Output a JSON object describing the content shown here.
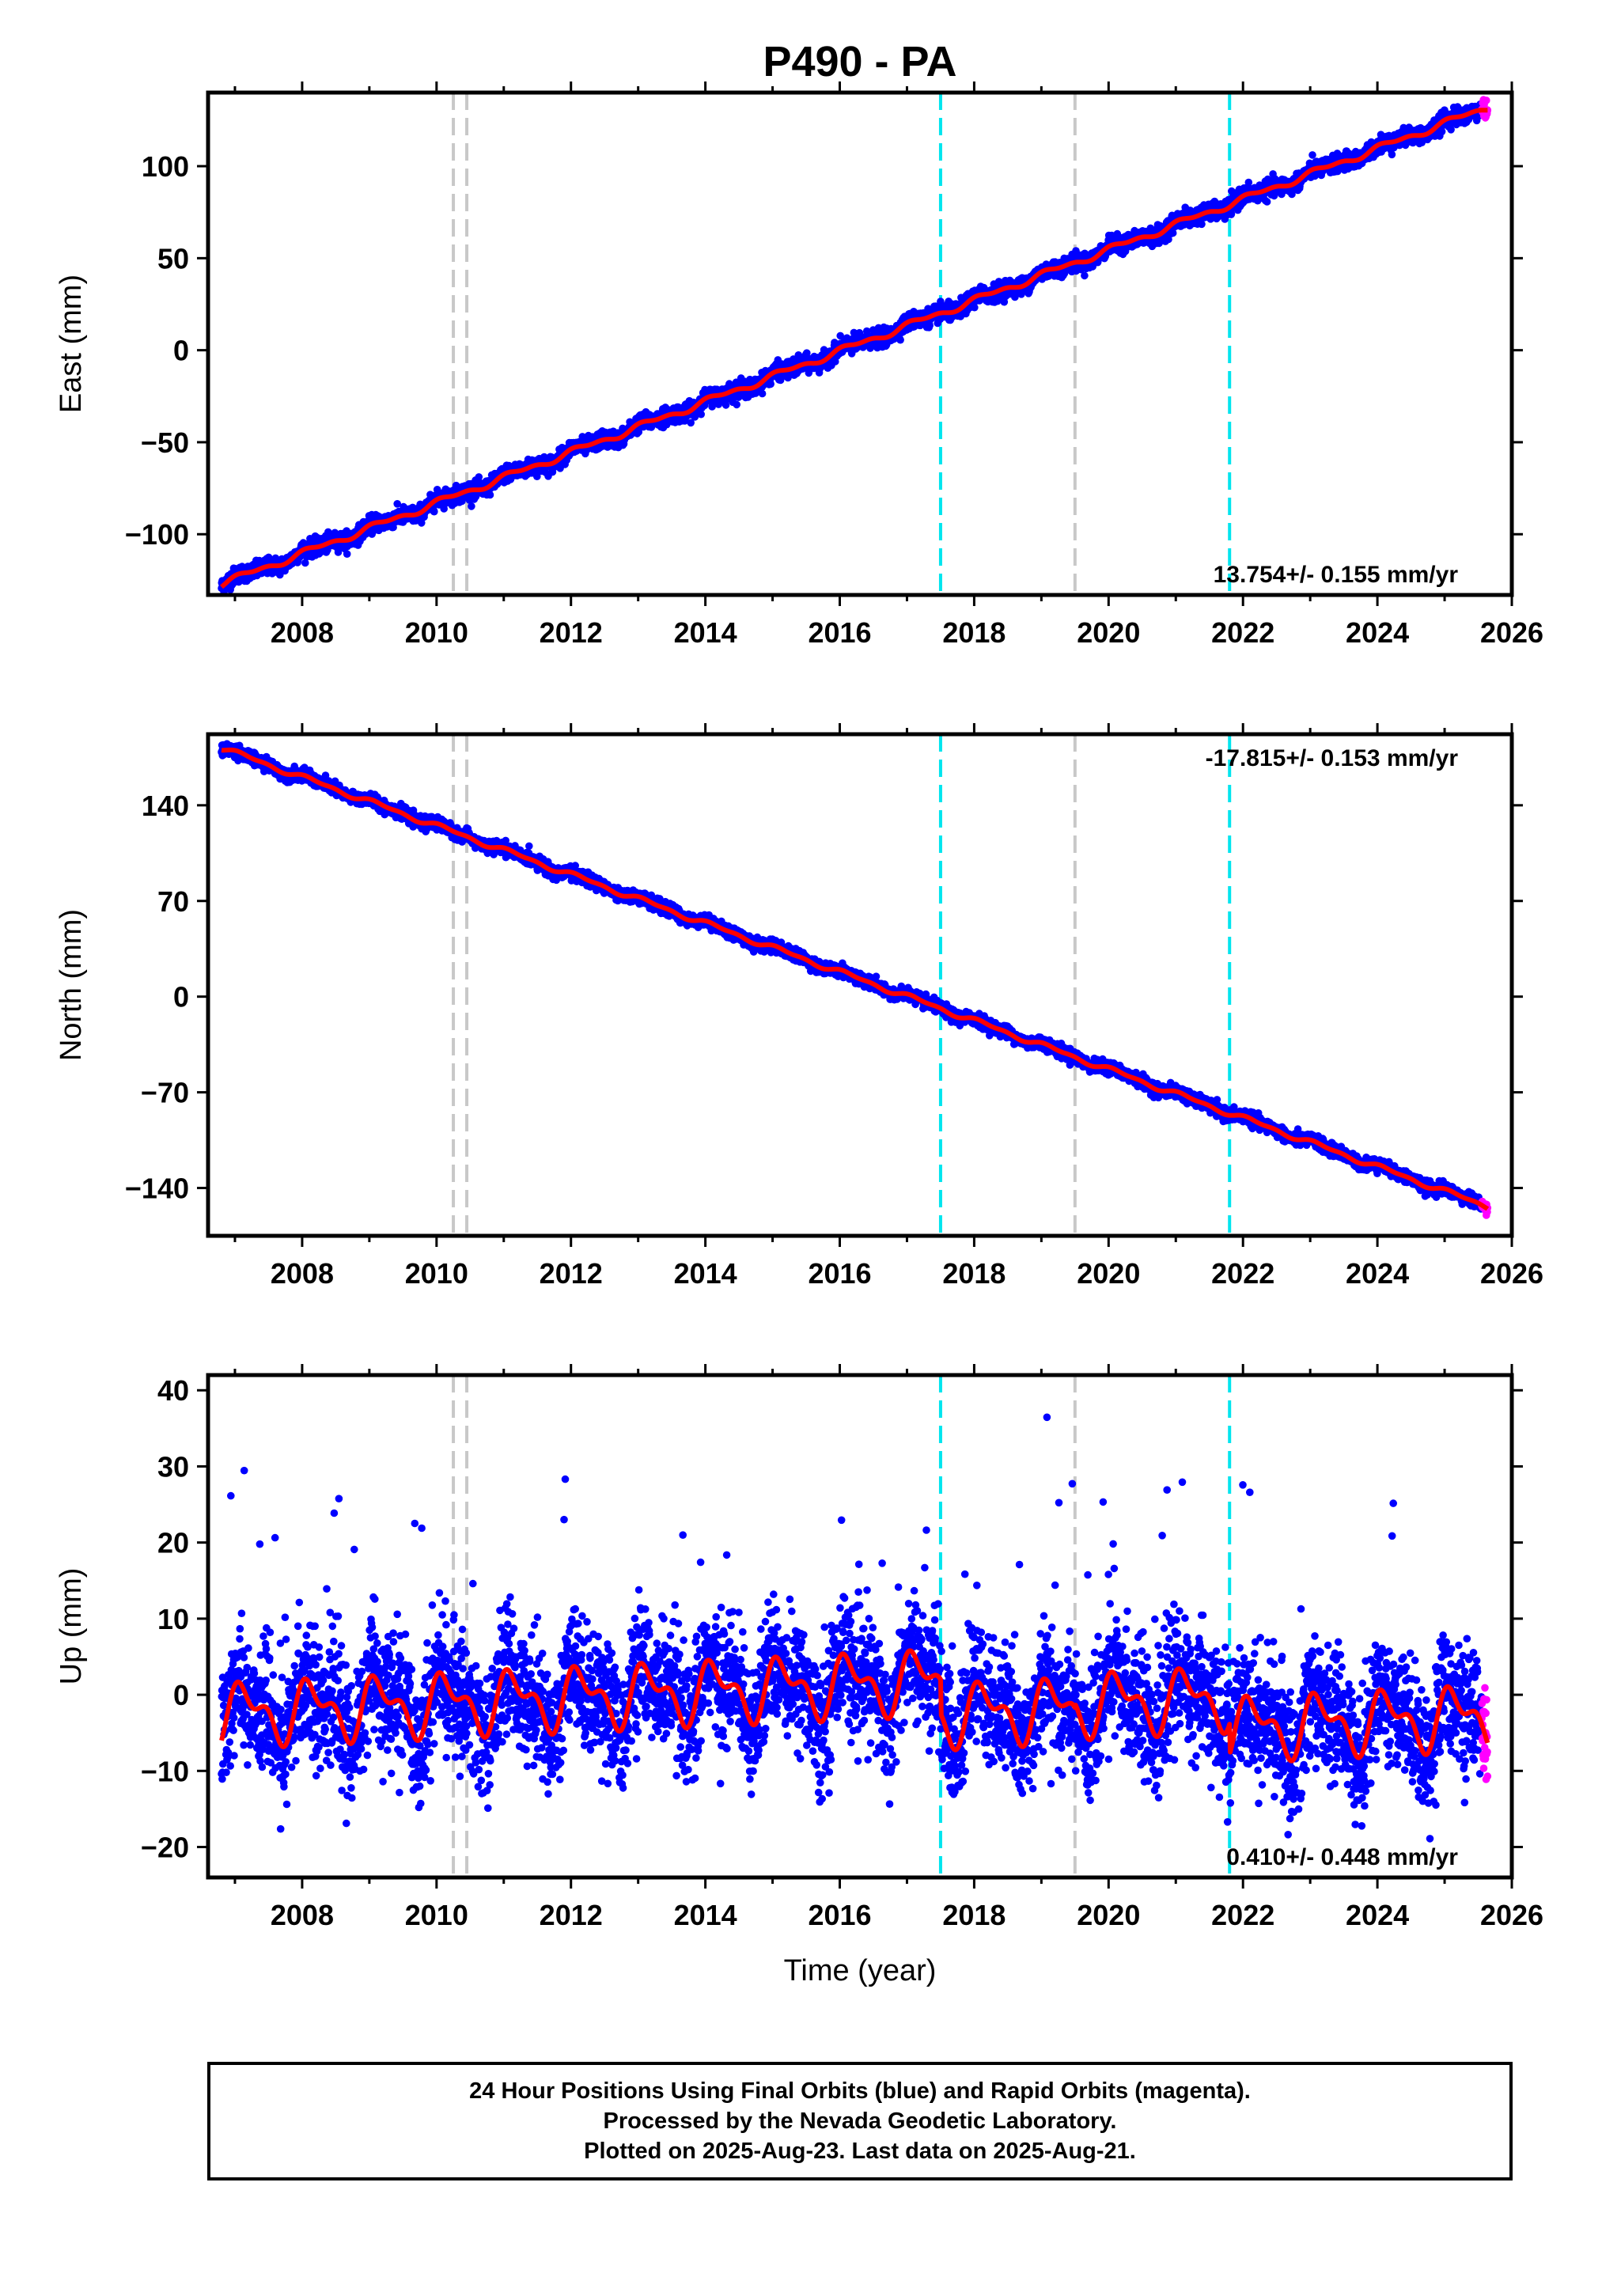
{
  "chart_data": {
    "title": "P490 - PA",
    "type": "scatter",
    "xlabel": "Time (year)",
    "xlim": [
      2006.6,
      2026.0
    ],
    "xticks": [
      2008,
      2010,
      2012,
      2014,
      2016,
      2018,
      2020,
      2022,
      2024,
      2026
    ],
    "data_start": 2006.8,
    "data_end": 2025.64,
    "rapid_start": 2025.55,
    "vlines": [
      {
        "x": 2010.25,
        "color": "#c8c8c8"
      },
      {
        "x": 2010.45,
        "color": "#c8c8c8"
      },
      {
        "x": 2017.5,
        "color": "#00e5ee"
      },
      {
        "x": 2019.5,
        "color": "#c8c8c8"
      },
      {
        "x": 2021.8,
        "color": "#00e5ee"
      }
    ],
    "series_colors": {
      "final": "#0000ff",
      "rapid": "#ff00ff",
      "model": "#ff0000"
    },
    "panels": [
      {
        "id": "east",
        "ylabel": "East (mm)",
        "ylim": [
          -133,
          140
        ],
        "yticks": [
          -100,
          -50,
          0,
          50,
          100
        ],
        "ytick_labels": [
          "−100",
          "−50",
          "0",
          "50",
          "100"
        ],
        "rate_label": "13.754+/- 0.155 mm/yr",
        "rate_pos": "bottom-right",
        "rate": 13.754,
        "intercept_at_start": -127,
        "seasonal_amp": 1.5,
        "noise": 2.2,
        "jumps": []
      },
      {
        "id": "north",
        "ylabel": "North (mm)",
        "ylim": [
          -175,
          192
        ],
        "yticks": [
          -140,
          -70,
          0,
          70,
          140
        ],
        "ytick_labels": [
          "−140",
          "−70",
          "0",
          "70",
          "140"
        ],
        "rate_label": "-17.815+/- 0.153 mm/yr",
        "rate_pos": "top-right",
        "rate": -17.815,
        "intercept_at_start": 182,
        "seasonal_amp": 1.5,
        "noise": 2.2,
        "jumps": []
      },
      {
        "id": "up",
        "ylabel": "Up (mm)",
        "ylim": [
          -24,
          42
        ],
        "yticks": [
          -20,
          -10,
          0,
          10,
          20,
          30,
          40
        ],
        "ytick_labels": [
          "−20",
          "−10",
          "0",
          "10",
          "20",
          "30",
          "40"
        ],
        "rate_label": "0.410+/- 0.448 mm/yr",
        "rate_pos": "bottom-right",
        "rate": 0.41,
        "intercept_at_start": -2.5,
        "seasonal_amp": 3.2,
        "noise": 4.0,
        "jumps": [
          {
            "x": 2017.5,
            "dy": -4.5
          },
          {
            "x": 2019.5,
            "dy": 0.5
          },
          {
            "x": 2021.8,
            "dy": -4.0
          }
        ]
      }
    ]
  },
  "footer": {
    "line1": "24 Hour Positions Using Final Orbits (blue) and Rapid Orbits (magenta).",
    "line2": "Processed by the Nevada Geodetic Laboratory.",
    "line3": "Plotted on 2025-Aug-23. Last data on 2025-Aug-21."
  }
}
